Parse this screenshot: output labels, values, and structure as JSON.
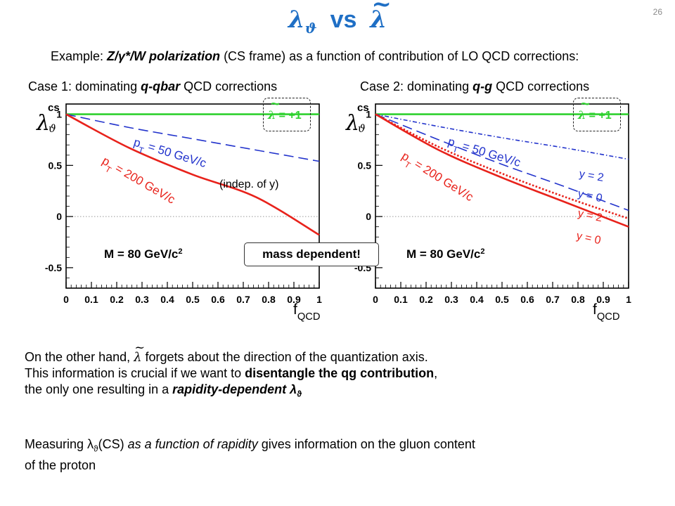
{
  "slide": {
    "number": "26"
  },
  "title": {
    "lhs": "λ",
    "lhs_sub": "ϑ",
    "vs": "vs",
    "rhs": "λ",
    "tilde": "~"
  },
  "example": {
    "prefix": "Example: ",
    "bold": "Z/γ*/W polarization",
    "suffix": " (CS frame) as a function of contribution of LO QCD corrections:"
  },
  "cases": [
    {
      "prefix": "Case 1: dominating ",
      "bold": "q-qbar",
      "suffix": " QCD corrections"
    },
    {
      "prefix": "Case 2: dominating ",
      "bold": "q-g",
      "suffix": " QCD corrections"
    }
  ],
  "mass_box": "mass dependent!",
  "lambda_box": {
    "tilde": "~",
    "symbol": "λ",
    "value": " = +1"
  },
  "paragraph1": {
    "line1_a": "On the other hand, ",
    "line1_sym": "λ",
    "line1_b": " forgets about the direction of the quantization axis.",
    "line2_a": "This information is crucial if we want to ",
    "line2_bold": "disentangle the qg contribution",
    "line2_b": ",",
    "line3_a": "the only one resulting in a ",
    "line3_bold": "rapidity-dependent λ",
    "line3_sub": "ϑ"
  },
  "paragraph2": {
    "line1_a": "Measuring λ",
    "line1_sub": "ϑ",
    "line1_b": "(CS) ",
    "line1_ital": "as a function of rapidity",
    "line1_c": " gives information on the gluon content",
    "line2": "of the proton"
  },
  "colors": {
    "title": "#1f6fc5",
    "red": "#e8221b",
    "blue": "#2233cc",
    "green": "#2fd12f"
  },
  "chart_data": [
    {
      "type": "line",
      "ylabel_main": "λ",
      "ylabel_sup": "cs",
      "ylabel_sub": "ϑ",
      "xlabel": "f",
      "xlabel_sub": "QCD",
      "xlim": [
        0,
        1
      ],
      "ylim": [
        -0.7,
        1.1
      ],
      "grid": false,
      "x_ticks": [
        "0",
        "0.1",
        "0.2",
        "0.3",
        "0.4",
        "0.5",
        "0.6",
        "0.7",
        "0.8",
        "0.9",
        "1"
      ],
      "y_ticks": [
        {
          "v": 1,
          "t": "1"
        },
        {
          "v": 0.5,
          "t": "0.5"
        },
        {
          "v": 0,
          "t": "0"
        },
        {
          "v": -0.5,
          "t": "-0.5"
        }
      ],
      "series": [
        {
          "name": "λ = +1",
          "color": "#2fd12f",
          "style": "solid",
          "x": [
            0,
            1
          ],
          "y": [
            1,
            1
          ]
        },
        {
          "name": "pT = 50 GeV/c",
          "color": "#2233cc",
          "style": "dash",
          "x": [
            0,
            0.25,
            0.5,
            0.75,
            1
          ],
          "y": [
            1,
            0.87,
            0.76,
            0.65,
            0.54
          ]
        },
        {
          "name": "pT = 200 GeV/c",
          "color": "#e8221b",
          "style": "solid",
          "x": [
            0,
            0.25,
            0.5,
            0.75,
            1
          ],
          "y": [
            1,
            0.67,
            0.41,
            0.19,
            -0.18
          ]
        }
      ],
      "annotations": [
        {
          "text_main": "p",
          "text_sub": "T",
          "text_rest": " = 50 GeV/c",
          "color": "#2233cc"
        },
        {
          "text_main": "p",
          "text_sub": "T",
          "text_rest": " = 200 GeV/c",
          "color": "#e8221b"
        },
        {
          "text": "(indep. of y)",
          "color": "#000000"
        },
        {
          "text_main": "M = 80 GeV/c",
          "text_sup": "2",
          "color": "#000000"
        }
      ]
    },
    {
      "type": "line",
      "ylabel_main": "λ",
      "ylabel_sup": "cs",
      "ylabel_sub": "ϑ",
      "xlabel": "f",
      "xlabel_sub": "QCD",
      "xlim": [
        0,
        1
      ],
      "ylim": [
        -0.7,
        1.1
      ],
      "grid": false,
      "x_ticks": [
        "0",
        "0.1",
        "0.2",
        "0.3",
        "0.4",
        "0.5",
        "0.6",
        "0.7",
        "0.8",
        "0.9",
        "1"
      ],
      "y_ticks": [
        {
          "v": 1,
          "t": "1"
        },
        {
          "v": 0.5,
          "t": "0.5"
        },
        {
          "v": 0,
          "t": "0"
        },
        {
          "v": -0.5,
          "t": "-0.5"
        }
      ],
      "series": [
        {
          "name": "λ = +1",
          "color": "#2fd12f",
          "style": "solid",
          "x": [
            0,
            1
          ],
          "y": [
            1,
            1
          ]
        },
        {
          "name": "pT = 50 GeV/c, y = 2",
          "color": "#2233cc",
          "style": "dashdot",
          "x": [
            0,
            0.25,
            0.5,
            0.75,
            1
          ],
          "y": [
            1,
            0.88,
            0.77,
            0.67,
            0.56
          ]
        },
        {
          "name": "pT = 50 GeV/c, y = 0",
          "color": "#2233cc",
          "style": "dash",
          "x": [
            0,
            0.25,
            0.5,
            0.75,
            1
          ],
          "y": [
            1,
            0.75,
            0.51,
            0.29,
            0.06
          ]
        },
        {
          "name": "pT = 200 GeV/c, y = 2",
          "color": "#e8221b",
          "style": "dot",
          "x": [
            0,
            0.25,
            0.5,
            0.75,
            1
          ],
          "y": [
            1,
            0.68,
            0.42,
            0.19,
            -0.02
          ]
        },
        {
          "name": "pT = 200 GeV/c, y = 0",
          "color": "#e8221b",
          "style": "solid",
          "x": [
            0,
            0.25,
            0.5,
            0.75,
            1
          ],
          "y": [
            1,
            0.65,
            0.38,
            0.14,
            -0.1
          ]
        }
      ],
      "annotations": [
        {
          "text_main": "p",
          "text_sub": "T",
          "text_rest": " = 50 GeV/c",
          "color": "#2233cc"
        },
        {
          "text_main": "p",
          "text_sub": "T",
          "text_rest": " = 200 GeV/c",
          "color": "#e8221b"
        },
        {
          "text": "y = 2",
          "color": "#2233cc"
        },
        {
          "text": "y = 0",
          "color": "#2233cc"
        },
        {
          "text": "y = 2",
          "color": "#e8221b"
        },
        {
          "text": "y = 0",
          "color": "#e8221b"
        },
        {
          "text_main": "M = 80 GeV/c",
          "text_sup": "2",
          "color": "#000000"
        }
      ]
    }
  ]
}
